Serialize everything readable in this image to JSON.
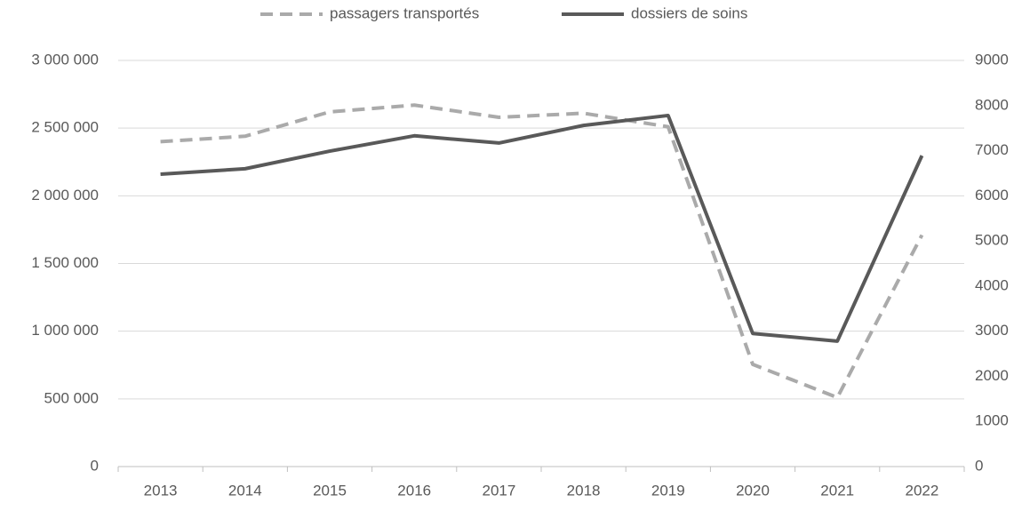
{
  "chart_data": {
    "type": "line",
    "categories": [
      "2013",
      "2014",
      "2015",
      "2016",
      "2017",
      "2018",
      "2019",
      "2020",
      "2021",
      "2022"
    ],
    "series": [
      {
        "name": "passagers transportés",
        "color": "#aaaaaa",
        "dash": true,
        "axis": "y",
        "values": [
          2400000,
          2440000,
          2620000,
          2670000,
          2580000,
          2610000,
          2510000,
          755000,
          510000,
          1710000
        ]
      },
      {
        "name": "dossiers de soins",
        "color": "#595959",
        "dash": false,
        "axis": "y2",
        "values": [
          6480,
          6600,
          6990,
          7330,
          7170,
          7560,
          7780,
          2950,
          2780,
          6890
        ]
      }
    ],
    "ylim": [
      0,
      3000000
    ],
    "yticks": [
      0,
      {
        "value": 500000,
        "label": "500 000"
      },
      {
        "value": 1000000,
        "label": "1 000 000"
      },
      {
        "value": 1500000,
        "label": "1 500 000"
      },
      {
        "value": 2000000,
        "label": "2 000 000"
      },
      {
        "value": 2500000,
        "label": "2 500 000"
      },
      {
        "value": 3000000,
        "label": "3 000 000"
      }
    ],
    "y2lim": [
      0,
      9000
    ],
    "y2ticks": [
      0,
      1000,
      2000,
      3000,
      4000,
      5000,
      6000,
      7000,
      8000,
      9000
    ],
    "grid": true,
    "legend": "top"
  }
}
